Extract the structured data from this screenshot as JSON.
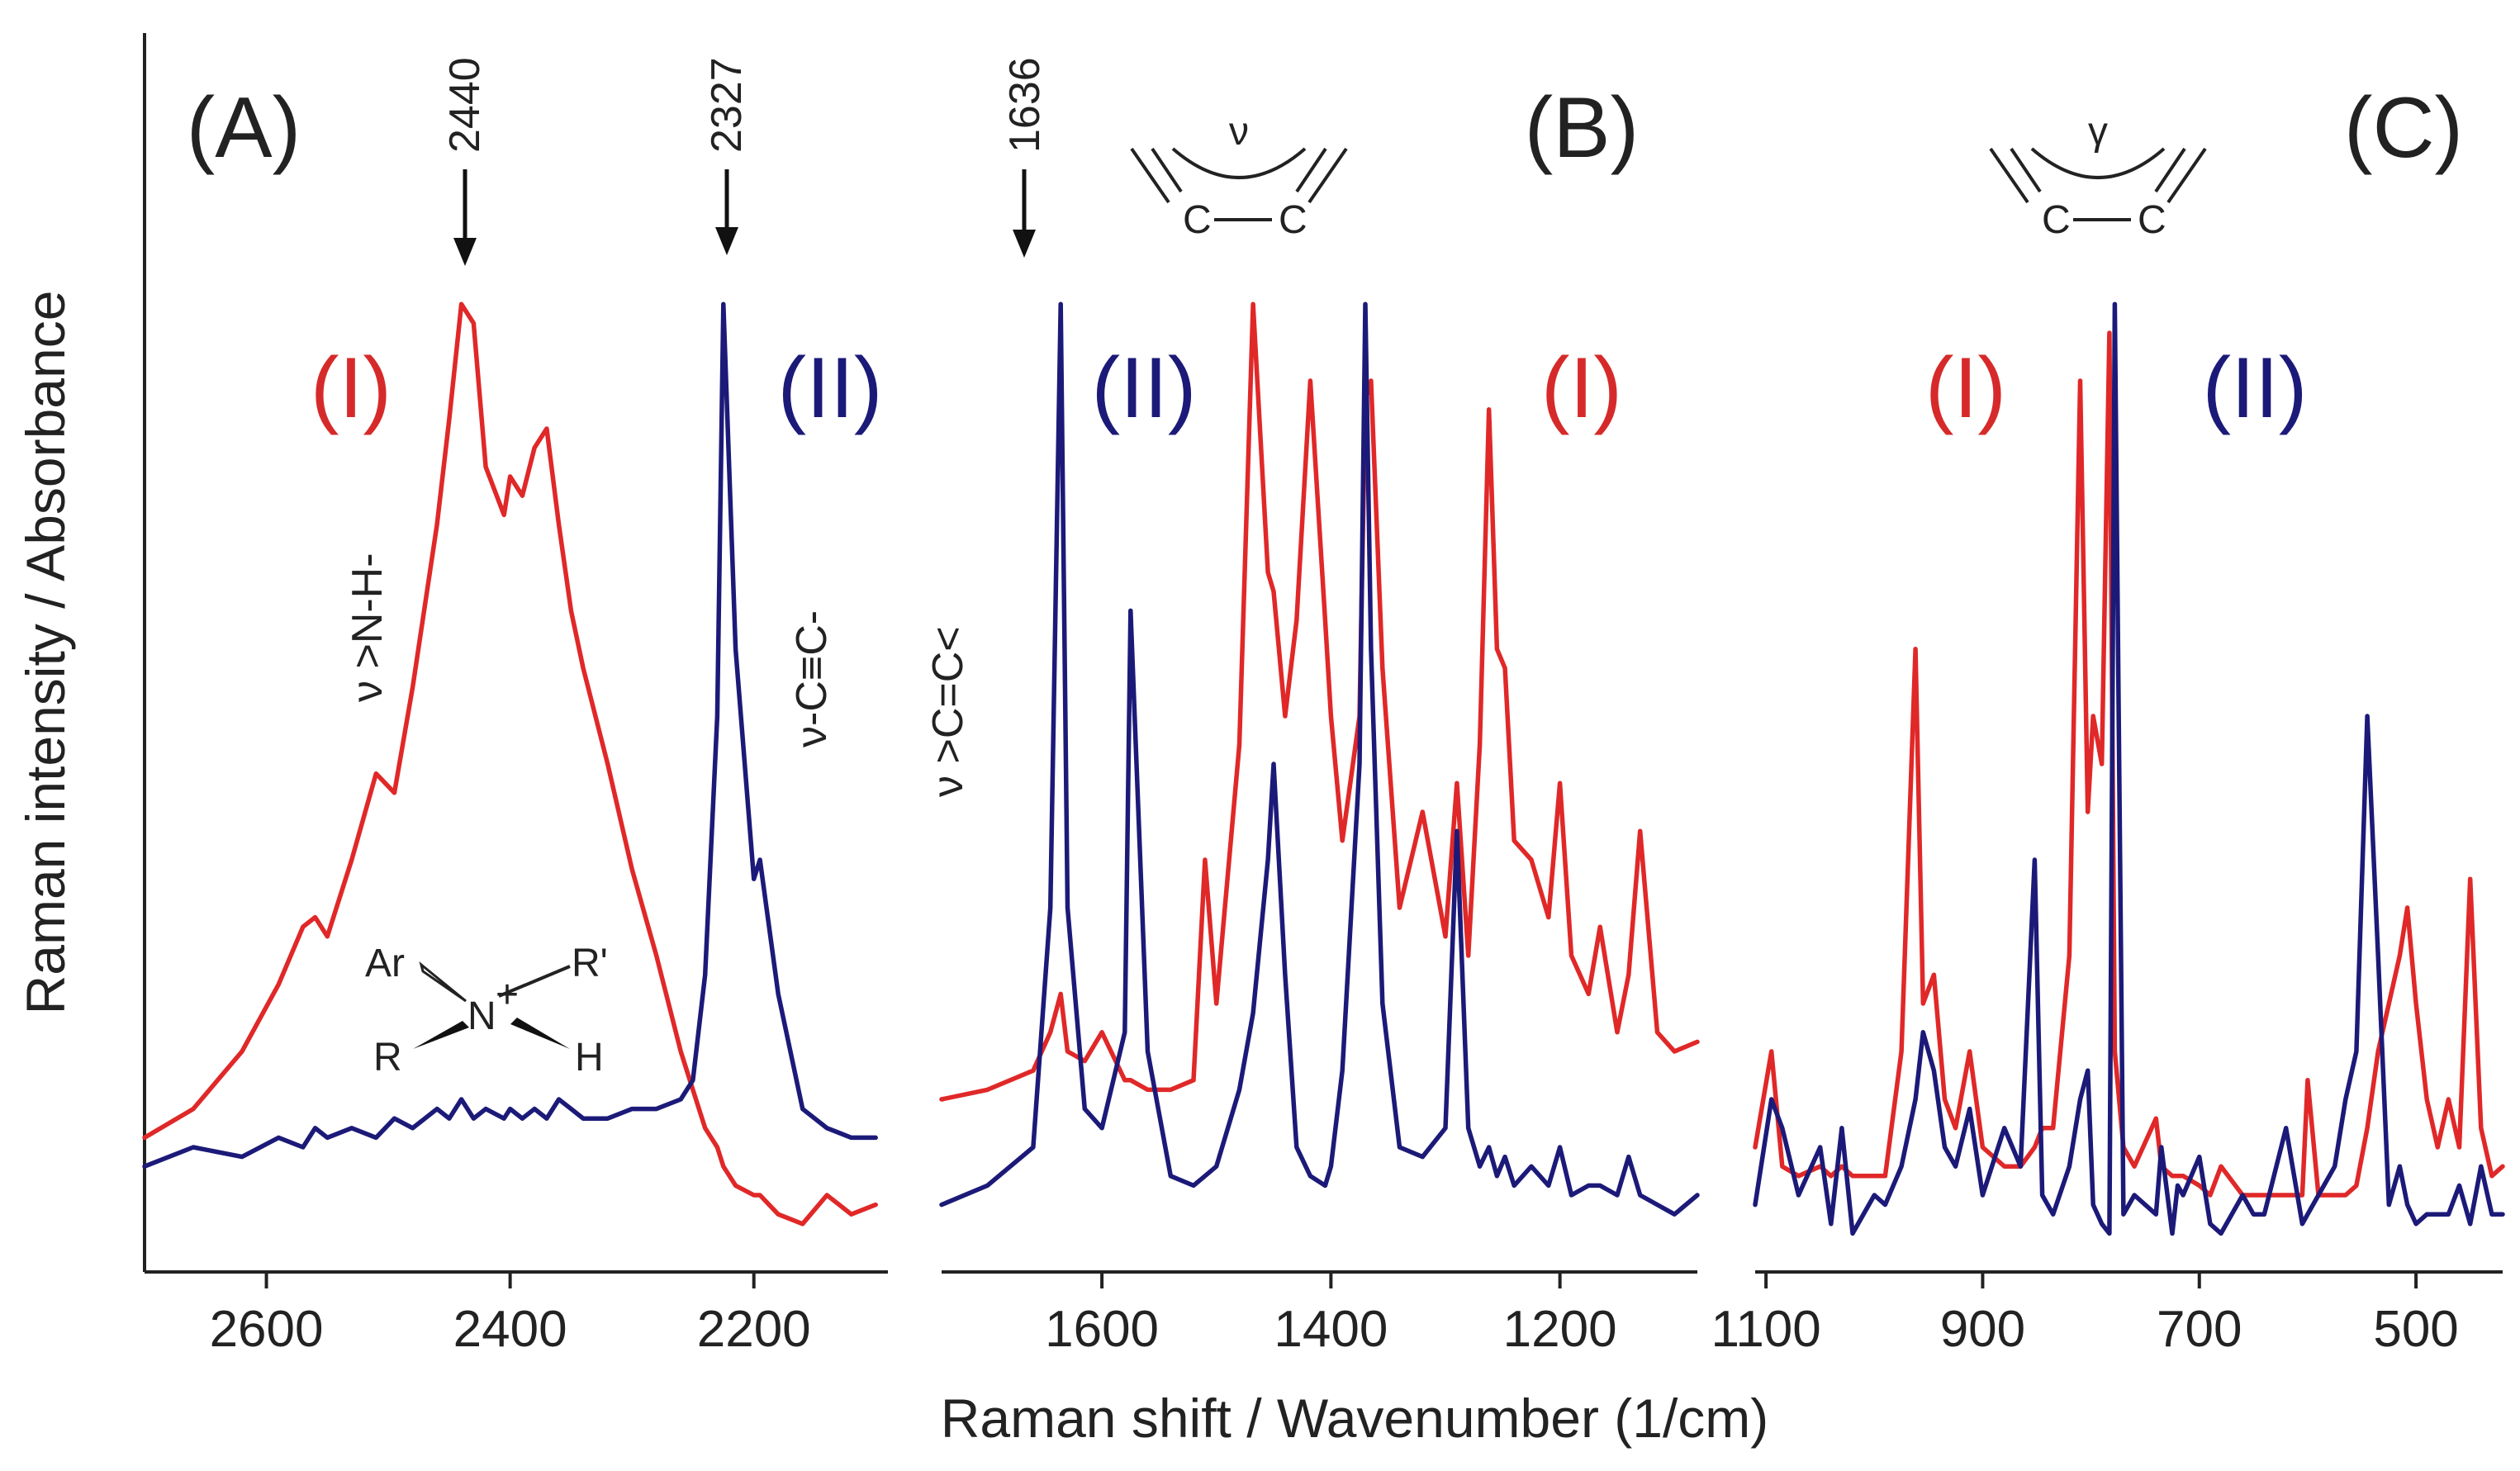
{
  "colors": {
    "series_I": "#e02828",
    "series_II": "#1c1a78",
    "axis": "#222222"
  },
  "figure": {
    "ylabel": "Raman intensity / Absorbance",
    "xlabel": "Raman shift / Wavenumber (1/cm)"
  },
  "panels": {
    "A": {
      "letter": "(A)",
      "series_I_label": "(I)",
      "series_II_label": "(II)",
      "peak_2440": "2440",
      "peak_2327": "2327",
      "ann_nh": "ν >N-H-",
      "ann_cc": "ν-C≡C-",
      "molecule": {
        "ar": "Ar",
        "n": "N",
        "plus": "+",
        "r1": "R'",
        "r": "R",
        "h": "H"
      }
    },
    "B": {
      "letter": "(B)",
      "series_I_label": "(I)",
      "series_II_label": "(II)",
      "peak_1636": "1636",
      "ann_cc": "ν >C=C<",
      "motif": {
        "greek": "ν",
        "c1": "C",
        "c2": "C"
      }
    },
    "C": {
      "letter": "(C)",
      "series_I_label": "(I)",
      "series_II_label": "(II)",
      "motif": {
        "greek": "γ",
        "c1": "C",
        "c2": "C"
      }
    }
  },
  "chart_data": [
    {
      "type": "line",
      "panel": "A",
      "xlabel": "Raman shift / Wavenumber (1/cm)",
      "ylabel": "Raman intensity / Absorbance",
      "xlim": [
        2700,
        2090
      ],
      "ylim": [
        0,
        1
      ],
      "xticks": [
        2600,
        2400,
        2200
      ],
      "x": [
        2700,
        2660,
        2620,
        2590,
        2570,
        2560,
        2550,
        2530,
        2510,
        2495,
        2480,
        2460,
        2450,
        2440,
        2430,
        2420,
        2405,
        2400,
        2390,
        2380,
        2370,
        2360,
        2350,
        2340,
        2320,
        2300,
        2280,
        2260,
        2250,
        2240,
        2230,
        2225,
        2215,
        2200,
        2195,
        2180,
        2160,
        2140,
        2120,
        2100
      ],
      "series": [
        {
          "name": "(I)",
          "values": [
            0.11,
            0.14,
            0.2,
            0.27,
            0.33,
            0.34,
            0.32,
            0.4,
            0.49,
            0.47,
            0.58,
            0.75,
            0.86,
            0.98,
            0.96,
            0.81,
            0.76,
            0.8,
            0.78,
            0.83,
            0.85,
            0.75,
            0.66,
            0.6,
            0.5,
            0.39,
            0.3,
            0.2,
            0.16,
            0.12,
            0.1,
            0.08,
            0.06,
            0.05,
            0.05,
            0.03,
            0.02,
            0.05,
            0.03,
            0.04
          ]
        },
        {
          "name": "(II)",
          "values": [
            0.08,
            0.1,
            0.09,
            0.11,
            0.1,
            0.12,
            0.11,
            0.12,
            0.11,
            0.13,
            0.12,
            0.14,
            0.13,
            0.15,
            0.13,
            0.14,
            0.13,
            0.14,
            0.13,
            0.14,
            0.13,
            0.15,
            0.14,
            0.13,
            0.13,
            0.14,
            0.14,
            0.15,
            0.17,
            0.28,
            0.55,
            0.98,
            0.62,
            0.38,
            0.4,
            0.26,
            0.14,
            0.12,
            0.11,
            0.11
          ]
        }
      ]
    },
    {
      "type": "line",
      "panel": "B",
      "xlim": [
        1740,
        1080
      ],
      "ylim": [
        0,
        1
      ],
      "xticks": [
        1600,
        1400,
        1200
      ],
      "x": [
        1740,
        1700,
        1660,
        1645,
        1636,
        1630,
        1615,
        1600,
        1580,
        1575,
        1560,
        1540,
        1520,
        1510,
        1500,
        1480,
        1468,
        1455,
        1450,
        1440,
        1430,
        1418,
        1405,
        1400,
        1390,
        1375,
        1370,
        1365,
        1355,
        1340,
        1320,
        1300,
        1290,
        1280,
        1270,
        1262,
        1255,
        1248,
        1240,
        1225,
        1210,
        1200,
        1190,
        1175,
        1165,
        1150,
        1140,
        1130,
        1115,
        1100,
        1080
      ],
      "series": [
        {
          "name": "(I)",
          "values": [
            0.15,
            0.16,
            0.18,
            0.22,
            0.26,
            0.2,
            0.19,
            0.22,
            0.17,
            0.17,
            0.16,
            0.16,
            0.17,
            0.4,
            0.25,
            0.52,
            0.98,
            0.7,
            0.68,
            0.55,
            0.65,
            0.9,
            0.65,
            0.55,
            0.42,
            0.55,
            0.88,
            0.9,
            0.6,
            0.35,
            0.45,
            0.32,
            0.48,
            0.3,
            0.52,
            0.87,
            0.62,
            0.6,
            0.42,
            0.4,
            0.34,
            0.48,
            0.3,
            0.26,
            0.33,
            0.22,
            0.28,
            0.43,
            0.22,
            0.2,
            0.21
          ]
        },
        {
          "name": "(II)",
          "values": [
            0.04,
            0.06,
            0.1,
            0.35,
            0.98,
            0.35,
            0.14,
            0.12,
            0.22,
            0.66,
            0.2,
            0.07,
            0.06,
            0.07,
            0.08,
            0.16,
            0.24,
            0.4,
            0.5,
            0.28,
            0.1,
            0.07,
            0.06,
            0.08,
            0.18,
            0.5,
            0.98,
            0.62,
            0.25,
            0.1,
            0.09,
            0.12,
            0.43,
            0.12,
            0.08,
            0.1,
            0.07,
            0.09,
            0.06,
            0.08,
            0.06,
            0.1,
            0.05,
            0.06,
            0.06,
            0.05,
            0.09,
            0.05,
            0.04,
            0.03,
            0.05
          ]
        }
      ]
    },
    {
      "type": "line",
      "panel": "C",
      "xlim": [
        1110,
        420
      ],
      "ylim": [
        0,
        1
      ],
      "xticks": [
        1100,
        900,
        700,
        500
      ],
      "x": [
        1110,
        1095,
        1085,
        1070,
        1050,
        1040,
        1030,
        1020,
        1000,
        990,
        975,
        962,
        955,
        945,
        935,
        925,
        912,
        900,
        880,
        865,
        852,
        845,
        835,
        820,
        810,
        803,
        798,
        790,
        783,
        778,
        770,
        760,
        740,
        735,
        725,
        720,
        715,
        700,
        690,
        680,
        660,
        650,
        640,
        620,
        605,
        600,
        590,
        575,
        565,
        555,
        545,
        535,
        525,
        515,
        508,
        500,
        490,
        480,
        470,
        460,
        450,
        440,
        430,
        420
      ],
      "series": [
        {
          "name": "(I)",
          "values": [
            0.1,
            0.2,
            0.08,
            0.07,
            0.08,
            0.07,
            0.08,
            0.07,
            0.07,
            0.07,
            0.2,
            0.62,
            0.25,
            0.28,
            0.15,
            0.12,
            0.2,
            0.1,
            0.08,
            0.08,
            0.1,
            0.12,
            0.12,
            0.3,
            0.9,
            0.45,
            0.55,
            0.5,
            0.95,
            0.2,
            0.1,
            0.08,
            0.13,
            0.08,
            0.07,
            0.07,
            0.07,
            0.06,
            0.05,
            0.08,
            0.05,
            0.05,
            0.05,
            0.05,
            0.05,
            0.17,
            0.05,
            0.05,
            0.05,
            0.06,
            0.12,
            0.2,
            0.25,
            0.3,
            0.35,
            0.25,
            0.15,
            0.1,
            0.15,
            0.1,
            0.38,
            0.12,
            0.07,
            0.08
          ]
        },
        {
          "name": "(II)",
          "values": [
            0.04,
            0.15,
            0.12,
            0.05,
            0.1,
            0.02,
            0.12,
            0.01,
            0.05,
            0.04,
            0.08,
            0.15,
            0.22,
            0.18,
            0.1,
            0.08,
            0.14,
            0.05,
            0.12,
            0.08,
            0.4,
            0.05,
            0.03,
            0.08,
            0.15,
            0.18,
            0.04,
            0.02,
            0.01,
            0.98,
            0.03,
            0.05,
            0.03,
            0.1,
            0.01,
            0.06,
            0.05,
            0.09,
            0.02,
            0.01,
            0.05,
            0.03,
            0.03,
            0.12,
            0.02,
            0.03,
            0.05,
            0.08,
            0.15,
            0.2,
            0.55,
            0.3,
            0.04,
            0.08,
            0.04,
            0.02,
            0.03,
            0.03,
            0.03,
            0.06,
            0.02,
            0.08,
            0.03,
            0.03
          ]
        }
      ]
    }
  ]
}
